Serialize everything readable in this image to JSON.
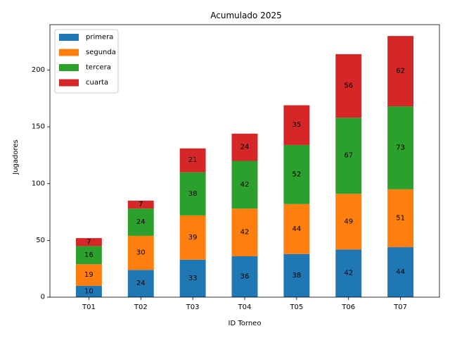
{
  "chart_data": {
    "type": "bar",
    "stacked": true,
    "title": "Acumulado 2025",
    "xlabel": "ID Torneo",
    "ylabel": "Jugadores",
    "categories": [
      "T01",
      "T02",
      "T03",
      "T04",
      "T05",
      "T06",
      "T07"
    ],
    "series": [
      {
        "name": "primera",
        "color": "#1f77b4",
        "values": [
          10,
          24,
          33,
          36,
          38,
          42,
          44
        ]
      },
      {
        "name": "segunda",
        "color": "#ff7f0e",
        "values": [
          19,
          30,
          39,
          42,
          44,
          49,
          51
        ]
      },
      {
        "name": "tercera",
        "color": "#2ca02c",
        "values": [
          16,
          24,
          38,
          42,
          52,
          67,
          73
        ]
      },
      {
        "name": "cuarta",
        "color": "#d62728",
        "values": [
          7,
          7,
          21,
          24,
          35,
          56,
          62
        ]
      }
    ],
    "ylim": [
      0,
      240
    ],
    "yticks": [
      0,
      50,
      100,
      150,
      200
    ],
    "grid": false,
    "legend": "top-left",
    "data_labels": true
  }
}
